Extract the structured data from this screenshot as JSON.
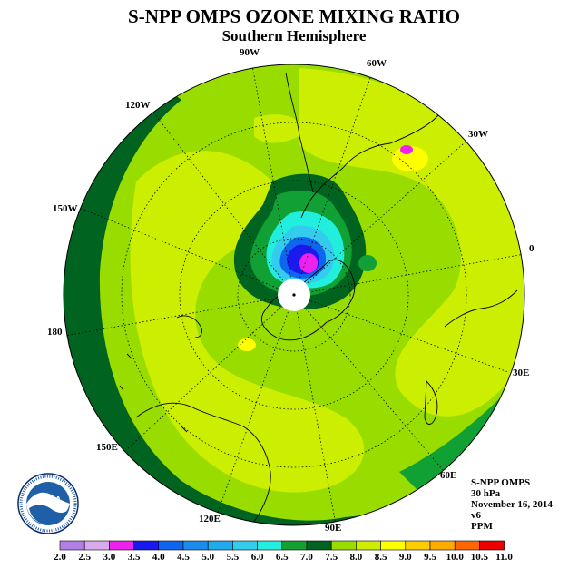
{
  "header": {
    "title": "S-NPP OMPS OZONE MIXING RATIO",
    "subtitle": "Southern Hemisphere"
  },
  "longitude_labels": [
    "90W",
    "60W",
    "30W",
    "0",
    "30E",
    "60E",
    "90E",
    "120E",
    "150E",
    "180",
    "150W",
    "120W"
  ],
  "info": {
    "instrument": "S-NPP OMPS",
    "level": "30 hPa",
    "date": "November 16, 2014",
    "version": "v6",
    "units": "PPM"
  },
  "colorbar": {
    "ticks": [
      "2.0",
      "2.5",
      "3.0",
      "3.5",
      "4.0",
      "4.5",
      "5.0",
      "5.5",
      "6.0",
      "6.5",
      "7.0",
      "7.5",
      "8.0",
      "8.5",
      "9.0",
      "9.5",
      "10.0",
      "10.5",
      "11.0"
    ],
    "colors": [
      "#b27fe6",
      "#d9aaee",
      "#ee22ee",
      "#1a1aee",
      "#0f66ee",
      "#1a8cee",
      "#22aaee",
      "#33ccee",
      "#22eedd",
      "#11a033",
      "#006420",
      "#99dd00",
      "#ccee00",
      "#ffff00",
      "#ffcc00",
      "#ffaa00",
      "#ff6600",
      "#ee0000",
      "#8b5a2b"
    ]
  },
  "logo": {
    "text": "NOAA",
    "colors": {
      "blue": "#1f5fa8",
      "navy": "#0b2a6a"
    }
  },
  "map_colors": {
    "ring": "#006420",
    "dark_green": "#11a033",
    "light_green": "#99dd00",
    "yellow_green": "#ccee00",
    "yellow": "#ffff00",
    "cyan": "#22eedd",
    "blue": "#1a1aee",
    "magenta": "#ee22ee"
  }
}
